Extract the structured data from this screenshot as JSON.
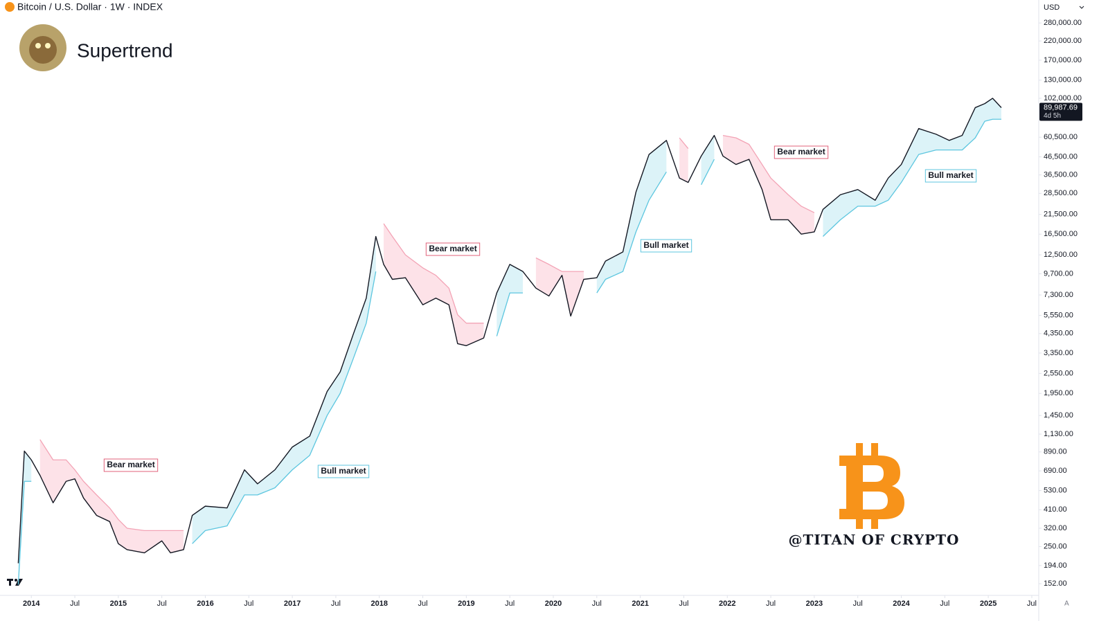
{
  "chart_data": {
    "type": "line",
    "title": "Bitcoin / U.S. Dollar · 1W · INDEX",
    "indicator": "Supertrend",
    "currency": "USD",
    "scale_mode": "A",
    "watermark": "@TITAN OF CRYPTO",
    "annotations": [
      "Bear market",
      "Bull market",
      "Bear market",
      "Bull market",
      "Bear market",
      "Bull market"
    ],
    "log_scale": true,
    "grid": false,
    "x": [
      2013.85,
      2013.92,
      2014.0,
      2014.1,
      2014.25,
      2014.4,
      2014.5,
      2014.6,
      2014.75,
      2014.9,
      2015.0,
      2015.1,
      2015.3,
      2015.5,
      2015.6,
      2015.75,
      2015.85,
      2016.0,
      2016.25,
      2016.45,
      2016.6,
      2016.8,
      2017.0,
      2017.2,
      2017.4,
      2017.55,
      2017.7,
      2017.85,
      2017.96,
      2018.05,
      2018.15,
      2018.3,
      2018.5,
      2018.65,
      2018.8,
      2018.9,
      2019.0,
      2019.2,
      2019.35,
      2019.5,
      2019.65,
      2019.8,
      2019.95,
      2020.1,
      2020.2,
      2020.35,
      2020.5,
      2020.6,
      2020.8,
      2020.95,
      2021.1,
      2021.3,
      2021.45,
      2021.55,
      2021.7,
      2021.85,
      2021.95,
      2022.1,
      2022.25,
      2022.4,
      2022.5,
      2022.7,
      2022.85,
      2023.0,
      2023.1,
      2023.3,
      2023.5,
      2023.7,
      2023.85,
      2024.0,
      2024.2,
      2024.4,
      2024.55,
      2024.7,
      2024.85,
      2024.96,
      2025.05,
      2025.15
    ],
    "series": [
      {
        "color": "#131722",
        "values": [
          200,
          900,
          800,
          650,
          450,
          600,
          620,
          480,
          380,
          350,
          260,
          240,
          230,
          270,
          230,
          240,
          380,
          430,
          420,
          700,
          580,
          700,
          950,
          1100,
          2000,
          2600,
          4300,
          7000,
          16000,
          11000,
          9000,
          9200,
          6400,
          7000,
          6400,
          3800,
          3700,
          4100,
          7500,
          11000,
          10000,
          8000,
          7200,
          9500,
          5500,
          9000,
          9200,
          11500,
          13000,
          29000,
          48000,
          58000,
          35000,
          33000,
          47000,
          62000,
          47000,
          42000,
          45000,
          30000,
          20000,
          20000,
          16500,
          17000,
          23000,
          28000,
          30000,
          26000,
          35000,
          42000,
          68000,
          63000,
          58000,
          62000,
          90000,
          95000,
          102000,
          89987.69
        ]
      },
      {
        "color": "#5cc6df",
        "fill": "#dcf3f8",
        "values": [
          150,
          600,
          600,
          null,
          null,
          null,
          null,
          null,
          null,
          null,
          null,
          null,
          null,
          null,
          null,
          null,
          260,
          310,
          330,
          500,
          500,
          550,
          700,
          850,
          1450,
          1950,
          3100,
          5000,
          10000,
          null,
          null,
          null,
          null,
          null,
          null,
          null,
          null,
          null,
          4200,
          7500,
          7500,
          null,
          null,
          null,
          null,
          null,
          7500,
          9000,
          10000,
          17000,
          26000,
          38000,
          null,
          null,
          32000,
          45000,
          null,
          null,
          null,
          null,
          null,
          null,
          null,
          null,
          16000,
          20000,
          24000,
          24000,
          26000,
          33000,
          48000,
          51000,
          51000,
          51000,
          60000,
          75000,
          77000,
          77000
        ]
      },
      {
        "color": "#f3a3b5",
        "fill": "#fde2e8",
        "values": [
          null,
          null,
          null,
          1050,
          800,
          800,
          700,
          600,
          500,
          420,
          360,
          320,
          310,
          310,
          310,
          310,
          null,
          null,
          null,
          null,
          null,
          null,
          null,
          null,
          null,
          null,
          null,
          null,
          null,
          19000,
          16000,
          12500,
          10500,
          9500,
          8000,
          5600,
          5000,
          5000,
          null,
          null,
          null,
          12000,
          11000,
          10000,
          10000,
          10000,
          null,
          null,
          null,
          null,
          null,
          null,
          60000,
          52000,
          null,
          null,
          62000,
          60000,
          55000,
          42000,
          35000,
          28000,
          24000,
          22000,
          null,
          null,
          null,
          null,
          null,
          null,
          null,
          null,
          null,
          null,
          null,
          null,
          null,
          null
        ]
      }
    ],
    "price_tag": {
      "value": 89987.69,
      "label": "89,987.69"
    },
    "countdown": "4d 5h",
    "xlim": [
      2013.64,
      2025.58
    ],
    "xticks": [
      2014,
      {
        "value": 2014.5,
        "label": "Jul"
      },
      2015,
      {
        "value": 2015.5,
        "label": "Jul"
      },
      2016,
      {
        "value": 2016.5,
        "label": "Jul"
      },
      2017,
      {
        "value": 2017.5,
        "label": "Jul"
      },
      2018,
      {
        "value": 2018.5,
        "label": "Jul"
      },
      2019,
      {
        "value": 2019.5,
        "label": "Jul"
      },
      2020,
      {
        "value": 2020.5,
        "label": "Jul"
      },
      2021,
      {
        "value": 2021.5,
        "label": "Jul"
      },
      2022,
      {
        "value": 2022.5,
        "label": "Jul"
      },
      2023,
      {
        "value": 2023.5,
        "label": "Jul"
      },
      2024,
      {
        "value": 2024.5,
        "label": "Jul"
      },
      2025,
      {
        "value": 2025.5,
        "label": "Jul"
      }
    ],
    "ylim": [
      130,
      381000
    ],
    "yticks": [
      {
        "value": 280000,
        "label": "280,000.00"
      },
      {
        "value": 220000,
        "label": "220,000.00"
      },
      {
        "value": 170000,
        "label": "170,000.00"
      },
      {
        "value": 130000,
        "label": "130,000.00"
      },
      {
        "value": 102000,
        "label": "102,000.00"
      },
      {
        "value": 60500,
        "label": "60,500.00"
      },
      {
        "value": 46500,
        "label": "46,500.00"
      },
      {
        "value": 36500,
        "label": "36,500.00"
      },
      {
        "value": 28500,
        "label": "28,500.00"
      },
      {
        "value": 21500,
        "label": "21,500.00"
      },
      {
        "value": 16500,
        "label": "16,500.00"
      },
      {
        "value": 12500,
        "label": "12,500.00"
      },
      {
        "value": 9700,
        "label": "9,700.00"
      },
      {
        "value": 7300,
        "label": "7,300.00"
      },
      {
        "value": 5550,
        "label": "5,550.00"
      },
      {
        "value": 4350,
        "label": "4,350.00"
      },
      {
        "value": 3350,
        "label": "3,350.00"
      },
      {
        "value": 2550,
        "label": "2,550.00"
      },
      {
        "value": 1950,
        "label": "1,950.00"
      },
      {
        "value": 1450,
        "label": "1,450.00"
      },
      {
        "value": 1130,
        "label": "1,130.00"
      },
      {
        "value": 890,
        "label": "890.00"
      },
      {
        "value": 690,
        "label": "690.00"
      },
      {
        "value": 530,
        "label": "530.00"
      },
      {
        "value": 410,
        "label": "410.00"
      },
      {
        "value": 320,
        "label": "320.00"
      },
      {
        "value": 250,
        "label": "250.00"
      },
      {
        "value": 194,
        "label": "194.00"
      },
      {
        "value": 152,
        "label": "152.00"
      }
    ]
  }
}
